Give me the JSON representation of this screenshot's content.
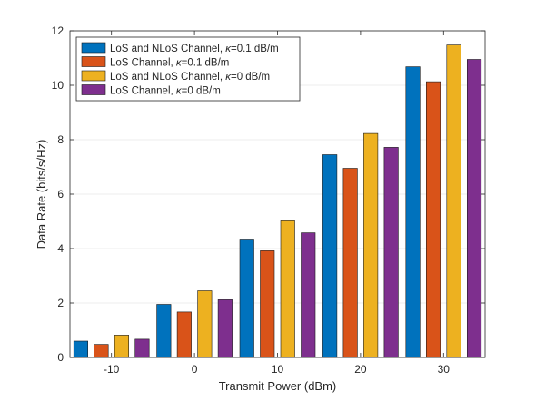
{
  "chart_data": {
    "type": "bar",
    "title": "",
    "xlabel": "Transmit Power (dBm)",
    "ylabel": "Data Rate (bits/s/Hz)",
    "categories": [
      "-10",
      "0",
      "10",
      "20",
      "30"
    ],
    "ylim": [
      0,
      12
    ],
    "yticks": [
      "0",
      "2",
      "4",
      "6",
      "8",
      "10",
      "12"
    ],
    "grid": true,
    "legend_position": "top-left",
    "series": [
      {
        "name": "LoS and NLoS Channel, κ=0.1 dB/m",
        "name_parts": [
          "LoS and NLoS Channel, ",
          "κ",
          "=0.1 dB/m"
        ],
        "color": "#0072BD",
        "values": [
          0.6,
          1.95,
          4.35,
          7.45,
          10.68
        ]
      },
      {
        "name": "LoS Channel, κ=0.1 dB/m",
        "name_parts": [
          "LoS Channel, ",
          "κ",
          "=0.1 dB/m"
        ],
        "color": "#D95319",
        "values": [
          0.48,
          1.67,
          3.92,
          6.95,
          10.13
        ]
      },
      {
        "name": "LoS and NLoS Channel, κ=0 dB/m",
        "name_parts": [
          "LoS and NLoS Channel, ",
          "κ",
          "=0 dB/m"
        ],
        "color": "#EDB120",
        "values": [
          0.82,
          2.45,
          5.02,
          8.23,
          11.48
        ]
      },
      {
        "name": "LoS Channel, κ=0 dB/m",
        "name_parts": [
          "LoS Channel, ",
          "κ",
          "=0 dB/m"
        ],
        "color": "#7E2F8E",
        "values": [
          0.67,
          2.12,
          4.58,
          7.72,
          10.95
        ]
      }
    ]
  }
}
